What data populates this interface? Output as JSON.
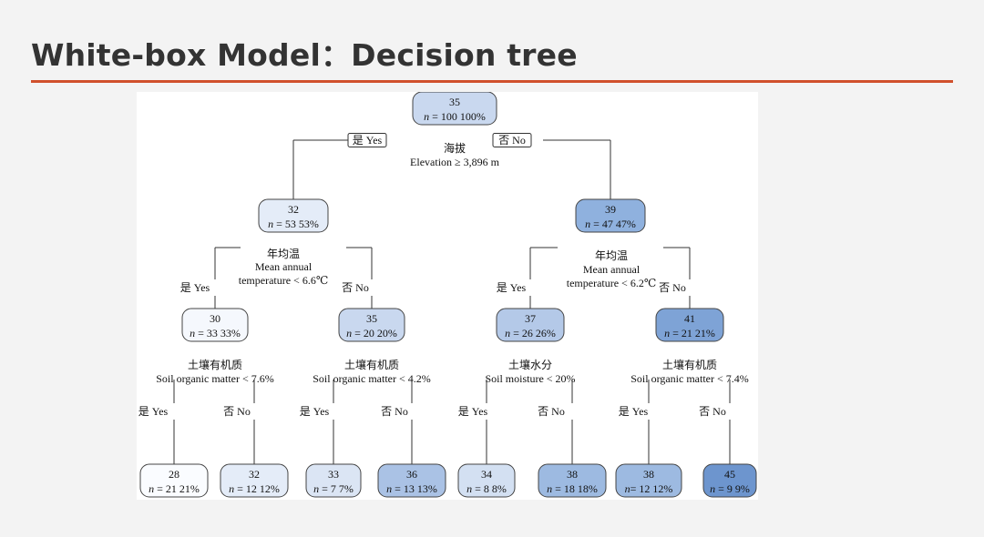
{
  "slide": {
    "title": "White-box Model：Decision tree"
  },
  "tree": {
    "nodes": [
      {
        "value": "35",
        "n_text": "n",
        "n_rest": " = 100  100%",
        "color": "#c9d8ef"
      },
      {
        "value": "32",
        "n_text": "n",
        "n_rest": " = 53  53%",
        "color": "#e4ecf8"
      },
      {
        "value": "39",
        "n_text": "n",
        "n_rest": " = 47  47%",
        "color": "#8fb1de"
      },
      {
        "value": "30",
        "n_text": "n",
        "n_rest": " = 33  33%",
        "color": "#f5f8fd"
      },
      {
        "value": "35",
        "n_text": "n",
        "n_rest": " = 20  20%",
        "color": "#c9d8ef"
      },
      {
        "value": "37",
        "n_text": "n",
        "n_rest": " = 26  26%",
        "color": "#b4c9e8"
      },
      {
        "value": "41",
        "n_text": "n",
        "n_rest": " = 21  21%",
        "color": "#7ea3d6"
      },
      {
        "value": "28",
        "n_text": "n",
        "n_rest": " = 21  21%",
        "color": "#fafcff"
      },
      {
        "value": "32",
        "n_text": "n",
        "n_rest": " = 12  12%",
        "color": "#e4ecf8"
      },
      {
        "value": "33",
        "n_text": "n",
        "n_rest": " = 7  7%",
        "color": "#dbe5f4"
      },
      {
        "value": "36",
        "n_text": "n",
        "n_rest": " = 13  13%",
        "color": "#aac2e5"
      },
      {
        "value": "34",
        "n_text": "n",
        "n_rest": " = 8  8%",
        "color": "#d3e0f2"
      },
      {
        "value": "38",
        "n_text": "n",
        "n_rest": " = 18  18%",
        "color": "#9dbae1"
      },
      {
        "value": "38",
        "n_text": "n",
        "n_rest": "= 12  12%",
        "color": "#9dbae1"
      },
      {
        "value": "45",
        "n_text": "n",
        "n_rest": " = 9  9%",
        "color": "#6d95ce"
      }
    ],
    "splits": [
      {
        "lines": [
          "海拔",
          "Elevation ≥ 3,896 m"
        ]
      },
      {
        "lines": [
          "年均温",
          "Mean annual",
          "temperature < 6.6℃"
        ]
      },
      {
        "lines": [
          "年均温",
          "Mean annual",
          "temperature < 6.2℃"
        ]
      },
      {
        "lines": [
          "土壤有机质",
          "Soil organic matter < 7.6%"
        ]
      },
      {
        "lines": [
          "土壤有机质",
          "Soil organic matter < 4.2%"
        ]
      },
      {
        "lines": [
          "土壤水分",
          "Soil moisture < 20%"
        ]
      },
      {
        "lines": [
          "土壤有机质",
          "Soil organic matter < 7.4%"
        ]
      }
    ],
    "yes_label": "是 Yes",
    "no_label": "否 No"
  }
}
